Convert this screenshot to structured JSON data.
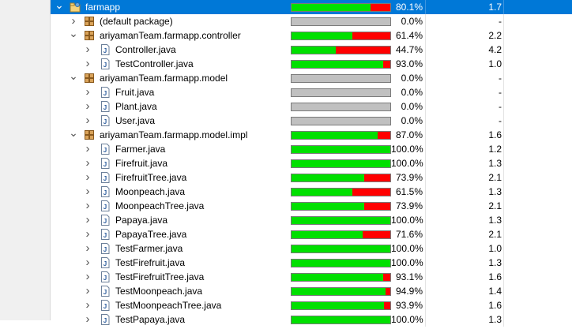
{
  "tree": {
    "rows": [
      {
        "label": "farmapp",
        "type": "project",
        "depth": 0,
        "expanded": true,
        "selected": true,
        "coverage": 80.1,
        "coverage_text": "80.1%",
        "complexity": "1.7"
      },
      {
        "label": "(default package)",
        "type": "package",
        "depth": 1,
        "expanded": false,
        "coverage": 0.0,
        "coverage_text": "0.0%",
        "complexity": "-"
      },
      {
        "label": "ariyamanTeam.farmapp.controller",
        "type": "package",
        "depth": 1,
        "expanded": true,
        "coverage": 61.4,
        "coverage_text": "61.4%",
        "complexity": "2.2"
      },
      {
        "label": "Controller.java",
        "type": "file",
        "depth": 2,
        "expanded": false,
        "coverage": 44.7,
        "coverage_text": "44.7%",
        "complexity": "4.2"
      },
      {
        "label": "TestController.java",
        "type": "file",
        "depth": 2,
        "expanded": false,
        "coverage": 93.0,
        "coverage_text": "93.0%",
        "complexity": "1.0"
      },
      {
        "label": "ariyamanTeam.farmapp.model",
        "type": "package",
        "depth": 1,
        "expanded": true,
        "coverage": 0.0,
        "coverage_text": "0.0%",
        "complexity": "-"
      },
      {
        "label": "Fruit.java",
        "type": "file",
        "depth": 2,
        "expanded": false,
        "coverage": 0.0,
        "coverage_text": "0.0%",
        "complexity": "-"
      },
      {
        "label": "Plant.java",
        "type": "file",
        "depth": 2,
        "expanded": false,
        "coverage": 0.0,
        "coverage_text": "0.0%",
        "complexity": "-"
      },
      {
        "label": "User.java",
        "type": "file",
        "depth": 2,
        "expanded": false,
        "coverage": 0.0,
        "coverage_text": "0.0%",
        "complexity": "-"
      },
      {
        "label": "ariyamanTeam.farmapp.model.impl",
        "type": "package",
        "depth": 1,
        "expanded": true,
        "coverage": 87.0,
        "coverage_text": "87.0%",
        "complexity": "1.6"
      },
      {
        "label": "Farmer.java",
        "type": "file",
        "depth": 2,
        "expanded": false,
        "coverage": 100.0,
        "coverage_text": "100.0%",
        "complexity": "1.2"
      },
      {
        "label": "Firefruit.java",
        "type": "file",
        "depth": 2,
        "expanded": false,
        "coverage": 100.0,
        "coverage_text": "100.0%",
        "complexity": "1.3"
      },
      {
        "label": "FirefruitTree.java",
        "type": "file",
        "depth": 2,
        "expanded": false,
        "coverage": 73.9,
        "coverage_text": "73.9%",
        "complexity": "2.1"
      },
      {
        "label": "Moonpeach.java",
        "type": "file",
        "depth": 2,
        "expanded": false,
        "coverage": 61.5,
        "coverage_text": "61.5%",
        "complexity": "1.3"
      },
      {
        "label": "MoonpeachTree.java",
        "type": "file",
        "depth": 2,
        "expanded": false,
        "coverage": 73.9,
        "coverage_text": "73.9%",
        "complexity": "2.1"
      },
      {
        "label": "Papaya.java",
        "type": "file",
        "depth": 2,
        "expanded": false,
        "coverage": 100.0,
        "coverage_text": "100.0%",
        "complexity": "1.3"
      },
      {
        "label": "PapayaTree.java",
        "type": "file",
        "depth": 2,
        "expanded": false,
        "coverage": 71.6,
        "coverage_text": "71.6%",
        "complexity": "2.1"
      },
      {
        "label": "TestFarmer.java",
        "type": "file",
        "depth": 2,
        "expanded": false,
        "coverage": 100.0,
        "coverage_text": "100.0%",
        "complexity": "1.0"
      },
      {
        "label": "TestFirefruit.java",
        "type": "file",
        "depth": 2,
        "expanded": false,
        "coverage": 100.0,
        "coverage_text": "100.0%",
        "complexity": "1.3"
      },
      {
        "label": "TestFirefruitTree.java",
        "type": "file",
        "depth": 2,
        "expanded": false,
        "coverage": 93.1,
        "coverage_text": "93.1%",
        "complexity": "1.6"
      },
      {
        "label": "TestMoonpeach.java",
        "type": "file",
        "depth": 2,
        "expanded": false,
        "coverage": 94.9,
        "coverage_text": "94.9%",
        "complexity": "1.4"
      },
      {
        "label": "TestMoonpeachTree.java",
        "type": "file",
        "depth": 2,
        "expanded": false,
        "coverage": 93.9,
        "coverage_text": "93.9%",
        "complexity": "1.6"
      },
      {
        "label": "TestPapaya.java",
        "type": "file",
        "depth": 2,
        "expanded": false,
        "coverage": 100.0,
        "coverage_text": "100.0%",
        "complexity": "1.3"
      }
    ]
  },
  "icons": {
    "expanded": "chevron-down-icon",
    "collapsed": "chevron-right-icon",
    "project": "project-folder-icon",
    "package": "package-icon",
    "file": "java-file-icon"
  },
  "colors": {
    "selection": "#0078d7",
    "covered": "#00e000",
    "uncovered": "#ff0000",
    "empty_bar": "#c0c0c0"
  }
}
